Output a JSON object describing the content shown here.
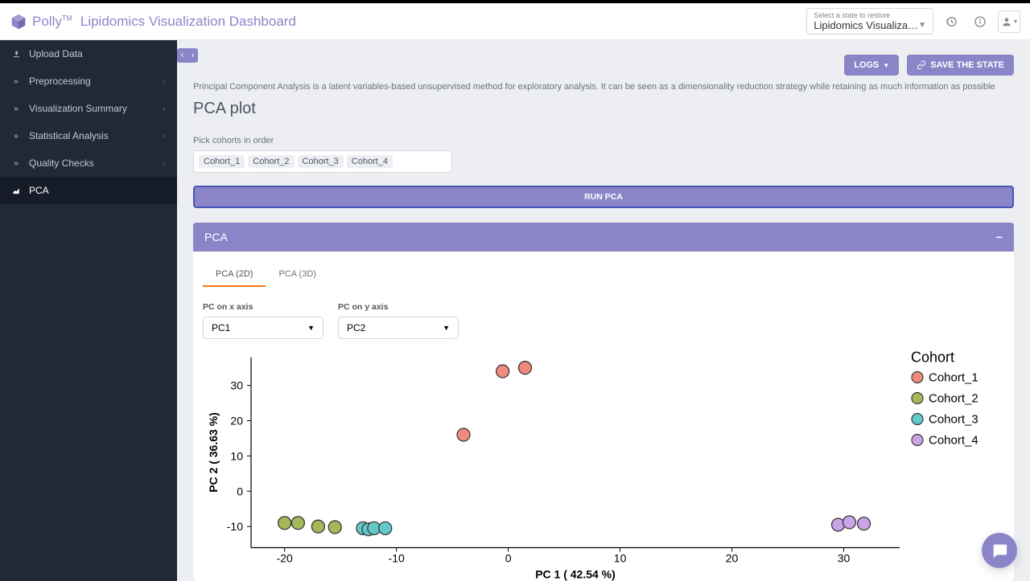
{
  "brand": {
    "name": "Polly",
    "tm": "TM"
  },
  "app_title": "Lipidomics Visualization Dashboard",
  "state_selector": {
    "label": "Select a state to restore",
    "value": "Lipidomics Visualiza…"
  },
  "sidebar": {
    "items": [
      {
        "label": "Upload Data",
        "icon": "upload",
        "expandable": false
      },
      {
        "label": "Preprocessing",
        "icon": "chev",
        "expandable": true
      },
      {
        "label": "Visualization Summary",
        "icon": "chev",
        "expandable": true
      },
      {
        "label": "Statistical Analysis",
        "icon": "chev",
        "expandable": true
      },
      {
        "label": "Quality Checks",
        "icon": "chev",
        "expandable": true
      },
      {
        "label": "PCA",
        "icon": "chart",
        "expandable": false,
        "active": true
      }
    ]
  },
  "buttons": {
    "logs": "LOGS",
    "save_state": "SAVE THE STATE",
    "run_pca": "RUN PCA"
  },
  "description": "Principal Component Analysis is a latent variables-based unsupervised method for exploratory analysis. It can be seen as a dimensionality reduction strategy while retaining as much information as possible",
  "page_title": "PCA plot",
  "cohort_picker": {
    "label": "Pick cohorts in order",
    "chips": [
      "Cohort_1",
      "Cohort_2",
      "Cohort_3",
      "Cohort_4"
    ]
  },
  "panel": {
    "title": "PCA",
    "tabs": [
      {
        "label": "PCA (2D)",
        "active": true
      },
      {
        "label": "PCA (3D)",
        "active": false
      }
    ],
    "x_axis": {
      "label": "PC on x axis",
      "value": "PC1"
    },
    "y_axis": {
      "label": "PC on y axis",
      "value": "PC2"
    }
  },
  "chart": {
    "type": "scatter",
    "x_label": "PC 1 ( 42.54 %)",
    "y_label": "PC 2 ( 36.63 %)",
    "x_ticks": [
      -20,
      -10,
      0,
      10,
      20,
      30
    ],
    "y_ticks": [
      -10,
      0,
      10,
      20,
      30
    ],
    "xlim": [
      -23,
      35
    ],
    "ylim": [
      -16,
      38
    ],
    "marker_radius": 8,
    "legend_title": "Cohort",
    "legend_fontsize": 18,
    "axis_fontsize": 14,
    "tick_fontsize": 14,
    "series": [
      {
        "name": "Cohort_1",
        "color": "#f08a7d",
        "stroke": "#3a3a3a",
        "points": [
          [
            -0.5,
            34
          ],
          [
            1.5,
            35
          ],
          [
            -4,
            16
          ]
        ]
      },
      {
        "name": "Cohort_2",
        "color": "#a4b85a",
        "stroke": "#3a3a3a",
        "points": [
          [
            -20,
            -9
          ],
          [
            -18.8,
            -9
          ],
          [
            -17,
            -10
          ],
          [
            -15.5,
            -10.2
          ]
        ]
      },
      {
        "name": "Cohort_3",
        "color": "#63c8c8",
        "stroke": "#3a3a3a",
        "points": [
          [
            -13,
            -10.5
          ],
          [
            -12.5,
            -10.8
          ],
          [
            -12,
            -10.5
          ],
          [
            -11,
            -10.5
          ]
        ]
      },
      {
        "name": "Cohort_4",
        "color": "#c9a5e8",
        "stroke": "#3a3a3a",
        "points": [
          [
            29.5,
            -9.5
          ],
          [
            30.5,
            -8.8
          ],
          [
            31.8,
            -9.2
          ]
        ]
      }
    ]
  },
  "colors": {
    "primary": "#8b85c8",
    "sidebar_bg": "#1f2937",
    "tab_active": "#f97316"
  }
}
